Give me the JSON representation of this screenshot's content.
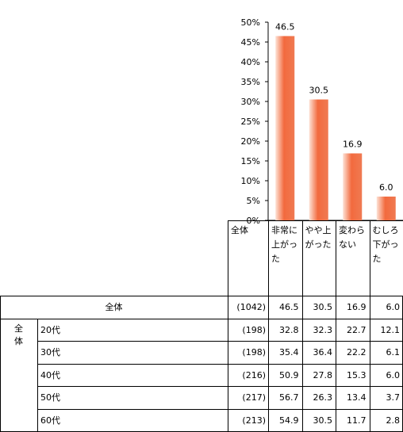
{
  "chart_data": {
    "type": "bar",
    "categories": [
      "非常に上がった",
      "やや上がった",
      "変わらない",
      "むしろ下がった"
    ],
    "series": [
      {
        "values": [
          46.5,
          30.5,
          16.9,
          6.0
        ]
      }
    ],
    "value_labels": [
      "46.5",
      "30.5",
      "16.9",
      "6.0"
    ],
    "yticks": [
      "0%",
      "5%",
      "10%",
      "15%",
      "20%",
      "25%",
      "30%",
      "35%",
      "40%",
      "45%",
      "50%"
    ],
    "ylim": [
      0,
      50
    ],
    "bar_color": "#f26a3e",
    "grid": false,
    "title": "",
    "xlabel": "",
    "ylabel": ""
  },
  "table": {
    "corner_label": "全体",
    "column_headers": [
      [
        "非常に",
        "上がっ",
        "た"
      ],
      [
        "やや上",
        "がった"
      ],
      [
        "変わら",
        "ない"
      ],
      [
        "むしろ",
        "下がっ",
        "た"
      ]
    ],
    "overall": {
      "label": "全体",
      "n": "(1042)",
      "values": [
        "46.5",
        "30.5",
        "16.9",
        "6.0"
      ]
    },
    "group_label": [
      "全",
      "体"
    ],
    "rows": [
      {
        "label": "20代",
        "n": "(198)",
        "values": [
          "32.8",
          "32.3",
          "22.7",
          "12.1"
        ]
      },
      {
        "label": "30代",
        "n": "(198)",
        "values": [
          "35.4",
          "36.4",
          "22.2",
          "6.1"
        ]
      },
      {
        "label": "40代",
        "n": "(216)",
        "values": [
          "50.9",
          "27.8",
          "15.3",
          "6.0"
        ]
      },
      {
        "label": "50代",
        "n": "(217)",
        "values": [
          "56.7",
          "26.3",
          "13.4",
          "3.7"
        ]
      },
      {
        "label": "60代",
        "n": "(213)",
        "values": [
          "54.9",
          "30.5",
          "11.7",
          "2.8"
        ]
      }
    ]
  }
}
